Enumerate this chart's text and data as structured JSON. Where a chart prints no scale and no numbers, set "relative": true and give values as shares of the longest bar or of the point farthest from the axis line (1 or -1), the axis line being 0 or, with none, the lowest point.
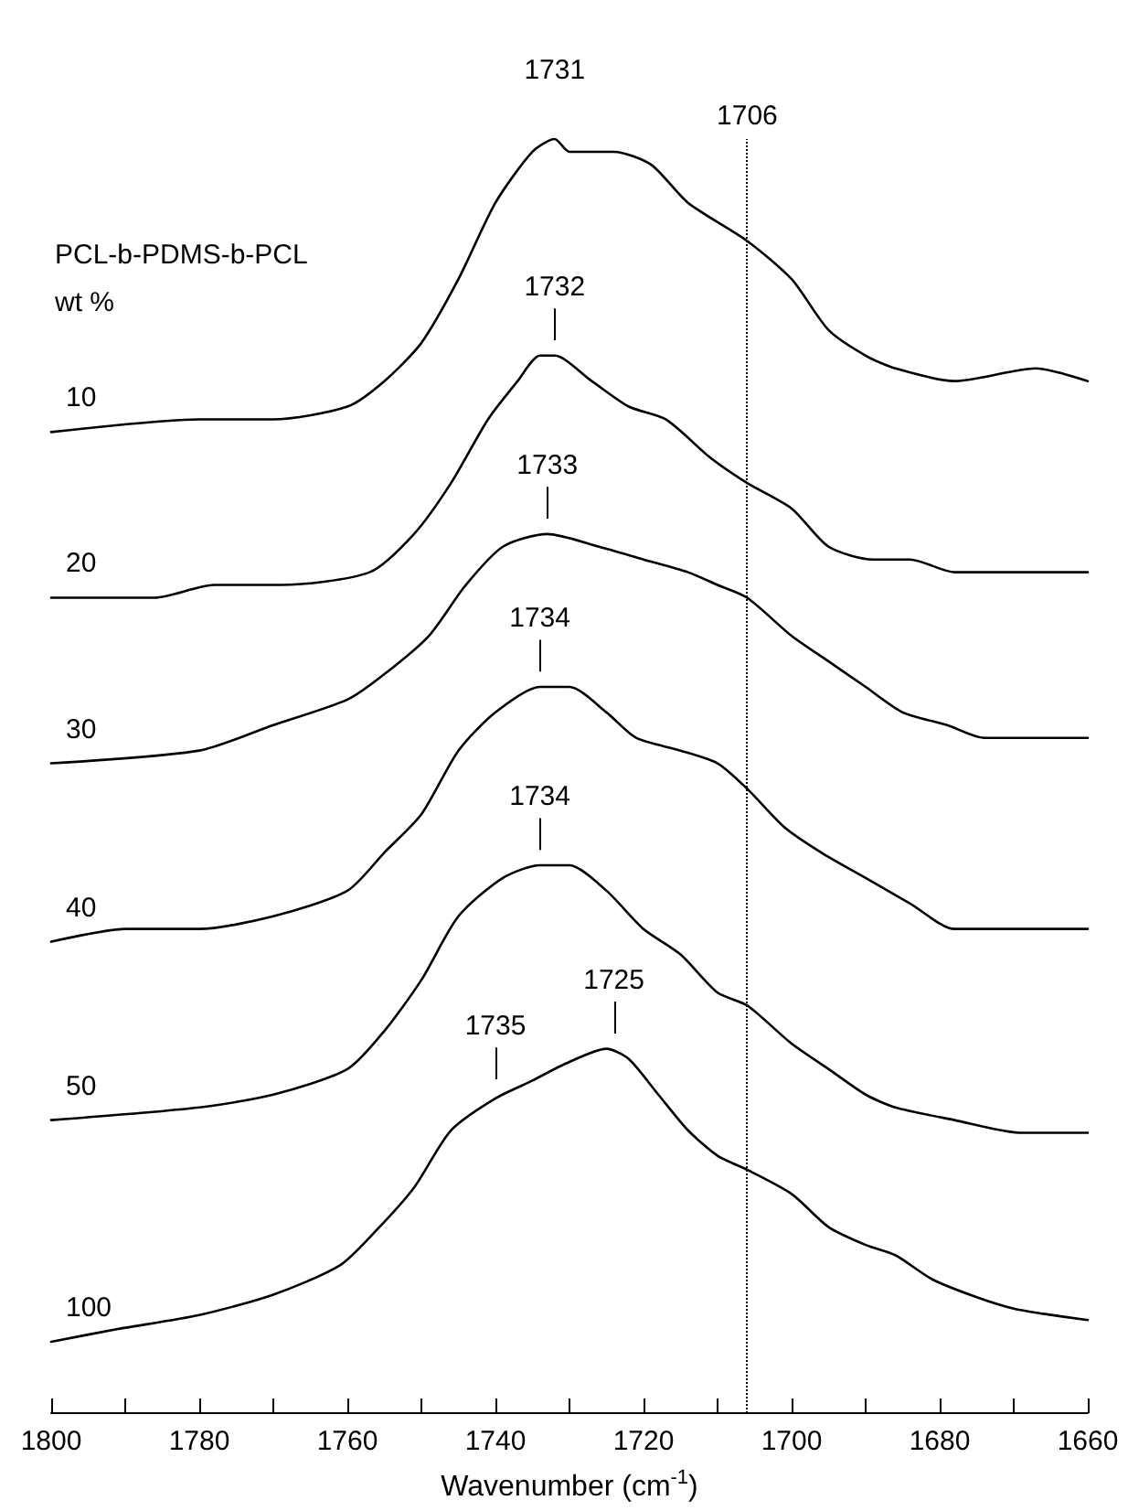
{
  "chart_data": {
    "type": "line",
    "relative": true,
    "marker": "none",
    "xlabel": "Wavenumber (cm$^{-1}$)",
    "xlim": [
      1800,
      1660
    ],
    "xticks": [
      1800,
      {
        "value": 1790,
        "label": null
      },
      1780,
      {
        "value": 1770,
        "label": null
      },
      1760,
      {
        "value": 1750,
        "label": null
      },
      1740,
      {
        "value": 1730,
        "label": null
      },
      1720,
      {
        "value": 1710,
        "label": null
      },
      1700,
      {
        "value": 1690,
        "label": null
      },
      1680,
      {
        "value": 1670,
        "label": null
      },
      1660
    ],
    "series": [
      {
        "name": "10",
        "color": "#000000",
        "x": [
          1800,
          1780,
          1770,
          1760,
          1755,
          1750,
          1745,
          1740,
          1735,
          1732,
          1730,
          1724,
          1719,
          1714,
          1706,
          1700,
          1695,
          1690,
          1686,
          1678,
          1667,
          1660
        ],
        "values": [
          0.77,
          0.78,
          0.78,
          0.79,
          0.81,
          0.84,
          0.89,
          0.95,
          0.99,
          1,
          0.99,
          0.99,
          0.98,
          0.95,
          0.92,
          0.89,
          0.85,
          0.83,
          0.82,
          0.81,
          0.82,
          0.81
        ]
      },
      {
        "name": "20",
        "color": "#000000",
        "x": [
          1800,
          1786,
          1778,
          1769,
          1757,
          1751,
          1746,
          1741,
          1737,
          1734,
          1732,
          1727,
          1722,
          1717,
          1711,
          1706,
          1700,
          1695,
          1689,
          1684,
          1678,
          1672,
          1666,
          1660
        ],
        "values": [
          0.64,
          0.64,
          0.65,
          0.65,
          0.66,
          0.69,
          0.73,
          0.78,
          0.81,
          0.83,
          0.83,
          0.81,
          0.79,
          0.78,
          0.75,
          0.73,
          0.71,
          0.68,
          0.67,
          0.67,
          0.66,
          0.66,
          0.66,
          0.66
        ]
      },
      {
        "name": "30",
        "color": "#000000",
        "x": [
          1800,
          1780,
          1770,
          1760,
          1755,
          1749,
          1744,
          1739,
          1733,
          1726,
          1720,
          1714,
          1710,
          1706,
          1700,
          1695,
          1690,
          1685,
          1679,
          1674,
          1660
        ],
        "values": [
          0.51,
          0.52,
          0.54,
          0.56,
          0.58,
          0.61,
          0.65,
          0.68,
          0.69,
          0.68,
          0.67,
          0.66,
          0.65,
          0.64,
          0.61,
          0.59,
          0.57,
          0.55,
          0.54,
          0.53,
          0.53
        ]
      },
      {
        "name": "40",
        "color": "#000000",
        "x": [
          1800,
          1790,
          1780,
          1770,
          1760,
          1755,
          1750,
          1745,
          1740,
          1734,
          1730,
          1725,
          1721,
          1715,
          1710,
          1706,
          1701,
          1696,
          1690,
          1684,
          1678,
          1674,
          1669,
          1660
        ],
        "values": [
          0.37,
          0.38,
          0.38,
          0.39,
          0.41,
          0.44,
          0.47,
          0.52,
          0.55,
          0.57,
          0.57,
          0.55,
          0.53,
          0.52,
          0.51,
          0.49,
          0.46,
          0.44,
          0.42,
          0.4,
          0.38,
          0.38,
          0.38,
          0.38
        ]
      },
      {
        "name": "50",
        "color": "#000000",
        "x": [
          1800,
          1780,
          1770,
          1760,
          1755,
          1750,
          1745,
          1739,
          1734,
          1730,
          1725,
          1720,
          1715,
          1710,
          1706,
          1700,
          1695,
          1690,
          1686,
          1678,
          1669,
          1660
        ],
        "values": [
          0.23,
          0.24,
          0.25,
          0.27,
          0.3,
          0.34,
          0.39,
          0.42,
          0.43,
          0.43,
          0.41,
          0.38,
          0.36,
          0.33,
          0.32,
          0.29,
          0.27,
          0.25,
          0.24,
          0.23,
          0.22,
          0.22
        ]
      },
      {
        "name": "100",
        "color": "#000000",
        "x": [
          1800,
          1791,
          1780,
          1770,
          1761,
          1756,
          1751,
          1746,
          1740,
          1735,
          1731,
          1725,
          1722,
          1718,
          1714,
          1710,
          1706,
          1700,
          1695,
          1690,
          1686,
          1681,
          1675,
          1670,
          1666,
          1660
        ],
        "values": [
          0.056,
          0.066,
          0.077,
          0.093,
          0.116,
          0.144,
          0.177,
          0.222,
          0.247,
          0.261,
          0.273,
          0.286,
          0.278,
          0.25,
          0.222,
          0.202,
          0.191,
          0.172,
          0.146,
          0.132,
          0.124,
          0.105,
          0.091,
          0.082,
          0.078,
          0.073
        ]
      }
    ],
    "ref_lines": [
      {
        "axis": "x",
        "value": 1706,
        "label": "1706",
        "line_style": "dotted",
        "color": "#000000"
      }
    ],
    "annotations": [
      "PCL-b-PDMS-b-PCL",
      "wt %",
      {
        "text": "1731",
        "x": 1732,
        "y": 1.0
      },
      {
        "text": "1732",
        "x": 1732,
        "y": 0.83
      },
      {
        "text": "1733",
        "x": 1733,
        "y": 0.69
      },
      {
        "text": "1734",
        "x": 1734,
        "y": 0.57
      },
      {
        "text": "1734",
        "x": 1734,
        "y": 0.43
      },
      {
        "text": "1735",
        "x": 1740,
        "y": 0.25
      },
      {
        "text": "1725",
        "x": 1724,
        "y": 0.286
      }
    ]
  }
}
